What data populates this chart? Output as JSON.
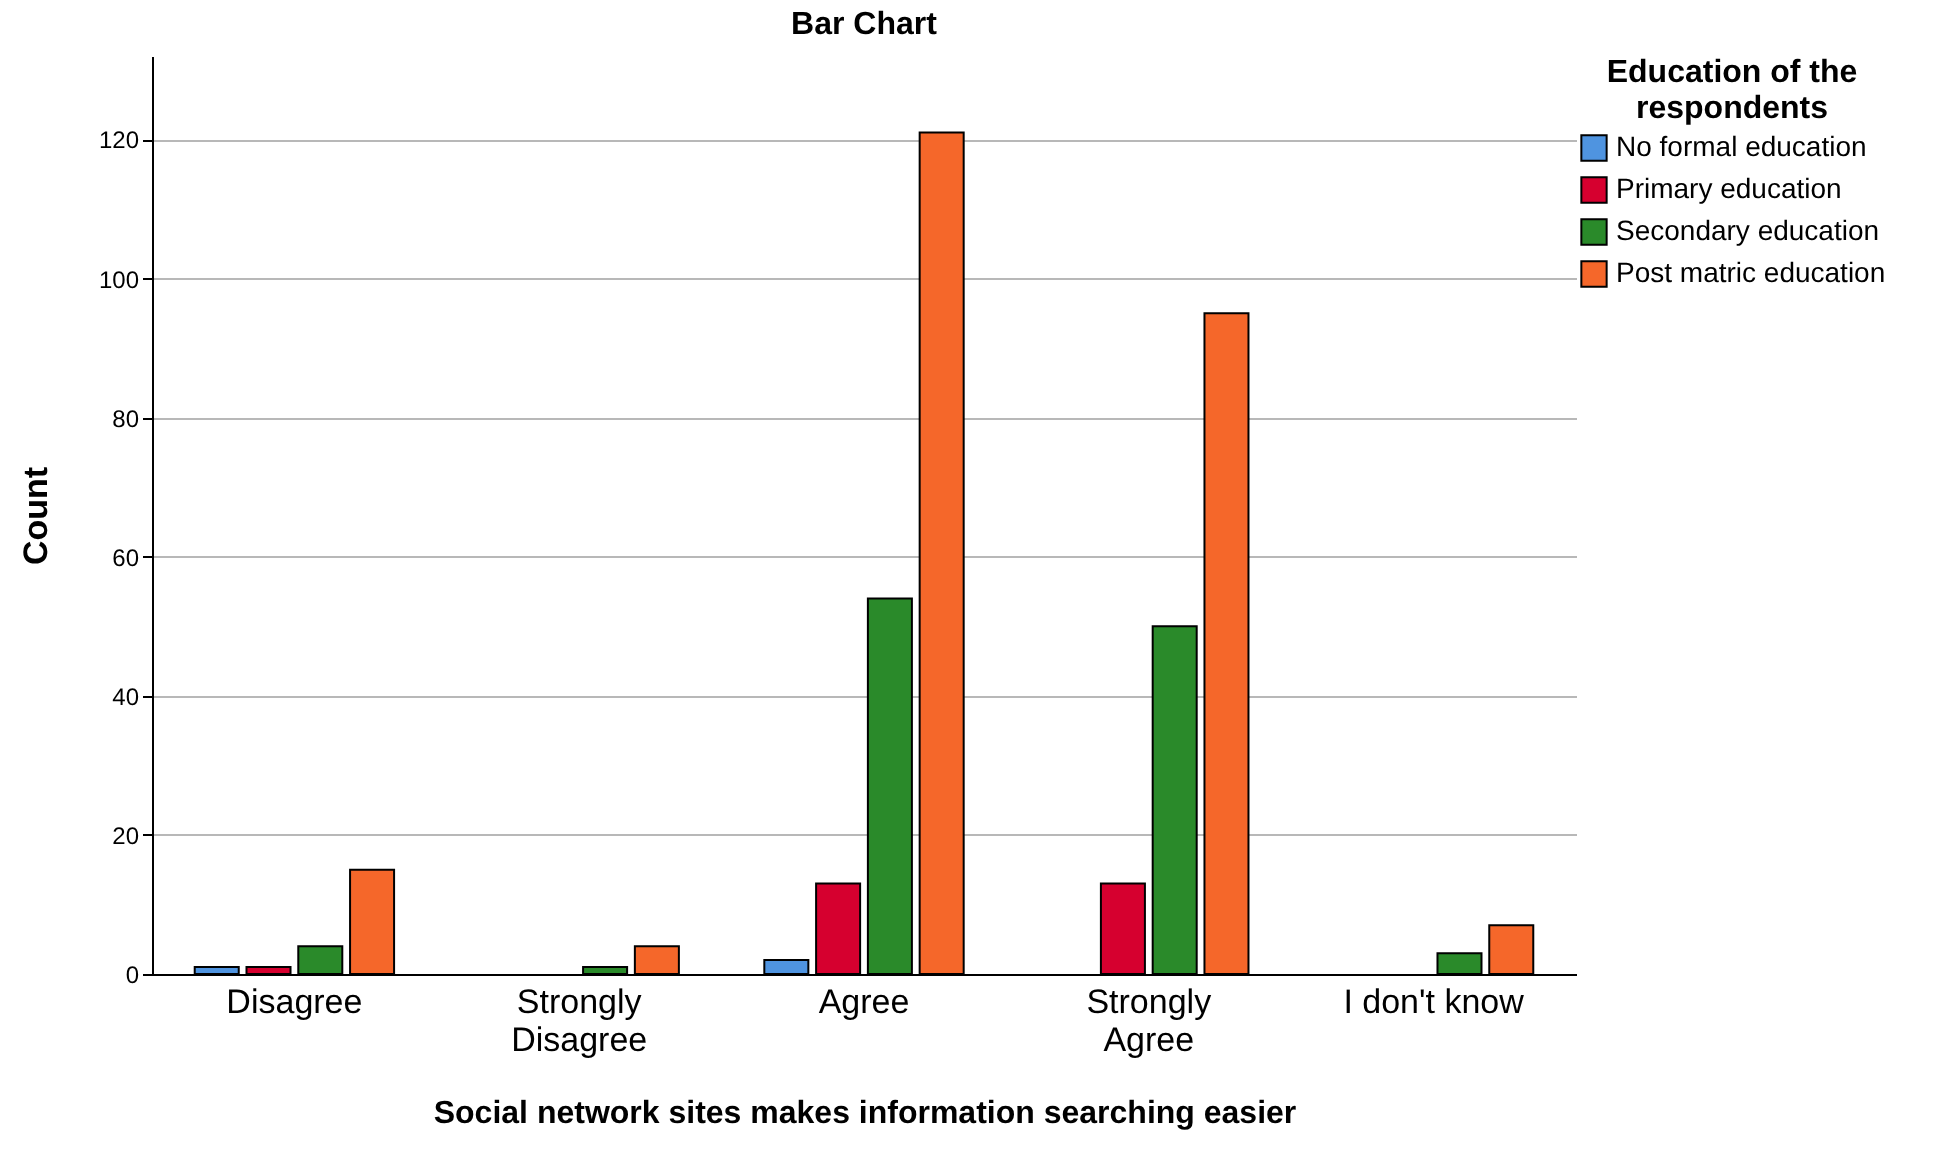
{
  "chart_data": {
    "type": "bar",
    "title": "Bar Chart",
    "xlabel": "Social network sites makes information searching easier",
    "ylabel": "Count",
    "legend_title": "Education of the respondents",
    "categories": [
      "Disagree",
      "Strongly Disagree",
      "Agree",
      "Strongly Agree",
      "I don't know"
    ],
    "series": [
      {
        "name": "No formal education",
        "color": "#4f94e0",
        "values": [
          1,
          null,
          2,
          null,
          null
        ]
      },
      {
        "name": "Primary education",
        "color": "#d6002f",
        "values": [
          1,
          null,
          13,
          13,
          null
        ]
      },
      {
        "name": "Secondary education",
        "color": "#2a8a2a",
        "values": [
          4,
          1,
          54,
          50,
          3
        ]
      },
      {
        "name": "Post matric education",
        "color": "#f5672a",
        "values": [
          15,
          4,
          121,
          95,
          7
        ]
      }
    ],
    "ylim": [
      0,
      132
    ],
    "yticks": [
      0,
      20,
      40,
      60,
      80,
      100,
      120
    ],
    "grid": "y",
    "legend": "top right"
  }
}
